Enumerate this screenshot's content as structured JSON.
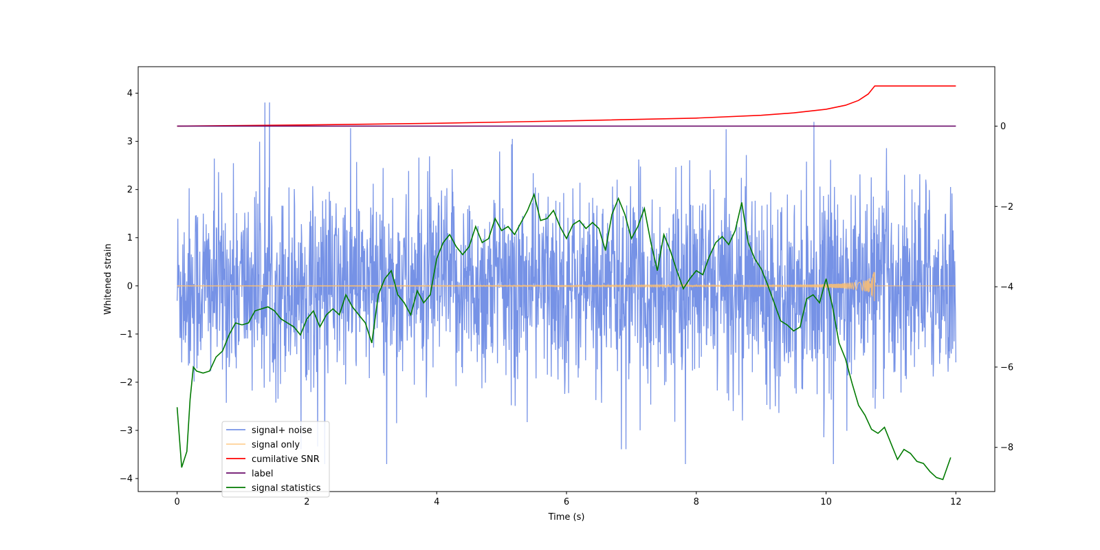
{
  "chart_data": {
    "type": "line",
    "title": "",
    "xlabel": "Time (s)",
    "ylabel": "Whitened strain",
    "y2label": "",
    "xlim": [
      -0.6,
      12.6
    ],
    "ylim": [
      -4.27,
      4.55
    ],
    "y2lim": [
      -9.1,
      1.48
    ],
    "xticks": [
      0,
      2,
      4,
      6,
      8,
      10,
      12
    ],
    "yticks": [
      4,
      3,
      2,
      1,
      0,
      -1,
      -2,
      -3,
      -4
    ],
    "y2ticks": [
      0,
      -2,
      -4,
      -6,
      -8
    ],
    "grid": false,
    "legend_position": "lower-left",
    "series": [
      {
        "name": "signal+ noise",
        "axis": "left",
        "color": "#7692e6",
        "kind": "noise",
        "x_range": [
          0,
          12
        ],
        "amplitude_typical": 1.0,
        "min_value": -3.7,
        "max_value": 4.1
      },
      {
        "name": "signal only",
        "axis": "left",
        "color": "#ffc06e",
        "kind": "chirp",
        "x_range": [
          0,
          12
        ],
        "merger_time": 10.75,
        "peak_amplitude": 0.35
      },
      {
        "name": "cumilative SNR",
        "axis": "right",
        "color": "#ff0000",
        "x": [
          0,
          2,
          4,
          6,
          8,
          9,
          9.5,
          10,
          10.3,
          10.5,
          10.65,
          10.75,
          12
        ],
        "values": [
          0.0,
          0.03,
          0.07,
          0.13,
          0.2,
          0.27,
          0.33,
          0.42,
          0.52,
          0.64,
          0.8,
          1.0,
          1.0
        ]
      },
      {
        "name": "label",
        "axis": "right",
        "color": "#6a0a6a",
        "x": [
          0,
          12
        ],
        "values": [
          0,
          0
        ]
      },
      {
        "name": "signal statistics",
        "axis": "right",
        "color": "#007a00",
        "x": [
          0,
          0.07,
          0.15,
          0.2,
          0.25,
          0.3,
          0.4,
          0.5,
          0.6,
          0.7,
          0.8,
          0.9,
          1.0,
          1.1,
          1.2,
          1.3,
          1.4,
          1.5,
          1.6,
          1.7,
          1.8,
          1.9,
          2.0,
          2.1,
          2.2,
          2.3,
          2.4,
          2.5,
          2.6,
          2.7,
          2.8,
          2.9,
          3.0,
          3.1,
          3.2,
          3.3,
          3.4,
          3.5,
          3.6,
          3.7,
          3.8,
          3.9,
          4.0,
          4.1,
          4.2,
          4.3,
          4.4,
          4.5,
          4.6,
          4.7,
          4.8,
          4.9,
          5.0,
          5.1,
          5.2,
          5.3,
          5.4,
          5.5,
          5.6,
          5.7,
          5.8,
          5.9,
          6.0,
          6.1,
          6.2,
          6.3,
          6.4,
          6.5,
          6.6,
          6.7,
          6.8,
          6.9,
          7.0,
          7.1,
          7.2,
          7.3,
          7.4,
          7.5,
          7.6,
          7.7,
          7.8,
          7.9,
          8.0,
          8.1,
          8.2,
          8.3,
          8.4,
          8.5,
          8.6,
          8.7,
          8.8,
          8.9,
          9.0,
          9.1,
          9.2,
          9.3,
          9.4,
          9.5,
          9.6,
          9.7,
          9.8,
          9.9,
          10.0,
          10.1,
          10.2,
          10.3,
          10.4,
          10.5,
          10.6,
          10.7,
          10.8,
          10.9,
          11.0,
          11.1,
          11.2,
          11.3,
          11.4,
          11.5,
          11.6,
          11.7,
          11.8,
          11.92
        ],
        "values": [
          -7.0,
          -8.5,
          -8.1,
          -6.8,
          -6.0,
          -6.1,
          -6.15,
          -6.1,
          -5.75,
          -5.6,
          -5.2,
          -4.9,
          -4.95,
          -4.9,
          -4.6,
          -4.55,
          -4.5,
          -4.6,
          -4.8,
          -4.9,
          -5.0,
          -5.2,
          -4.8,
          -4.6,
          -5.0,
          -4.7,
          -4.55,
          -4.7,
          -4.2,
          -4.5,
          -4.7,
          -4.9,
          -5.4,
          -4.2,
          -3.8,
          -3.6,
          -4.2,
          -4.4,
          -4.7,
          -4.1,
          -4.4,
          -4.2,
          -3.3,
          -2.9,
          -2.7,
          -3.0,
          -3.2,
          -3.0,
          -2.5,
          -2.9,
          -2.8,
          -2.3,
          -2.6,
          -2.5,
          -2.7,
          -2.4,
          -2.1,
          -1.7,
          -2.35,
          -2.3,
          -2.1,
          -2.5,
          -2.8,
          -2.45,
          -2.35,
          -2.55,
          -2.4,
          -2.55,
          -3.1,
          -2.2,
          -1.8,
          -2.2,
          -2.8,
          -2.5,
          -2.05,
          -2.9,
          -3.6,
          -2.7,
          -3.1,
          -3.6,
          -4.05,
          -3.8,
          -3.6,
          -3.7,
          -3.25,
          -2.9,
          -2.75,
          -2.95,
          -2.6,
          -1.9,
          -2.9,
          -3.3,
          -3.55,
          -3.95,
          -4.4,
          -4.85,
          -4.95,
          -5.1,
          -5.0,
          -4.3,
          -4.2,
          -4.4,
          -3.8,
          -4.5,
          -5.4,
          -5.8,
          -6.4,
          -6.95,
          -7.2,
          -7.55,
          -7.65,
          -7.5,
          -7.9,
          -8.3,
          -8.05,
          -8.15,
          -8.35,
          -8.4,
          -8.6,
          -8.75,
          -8.8,
          -8.25
        ]
      }
    ]
  }
}
